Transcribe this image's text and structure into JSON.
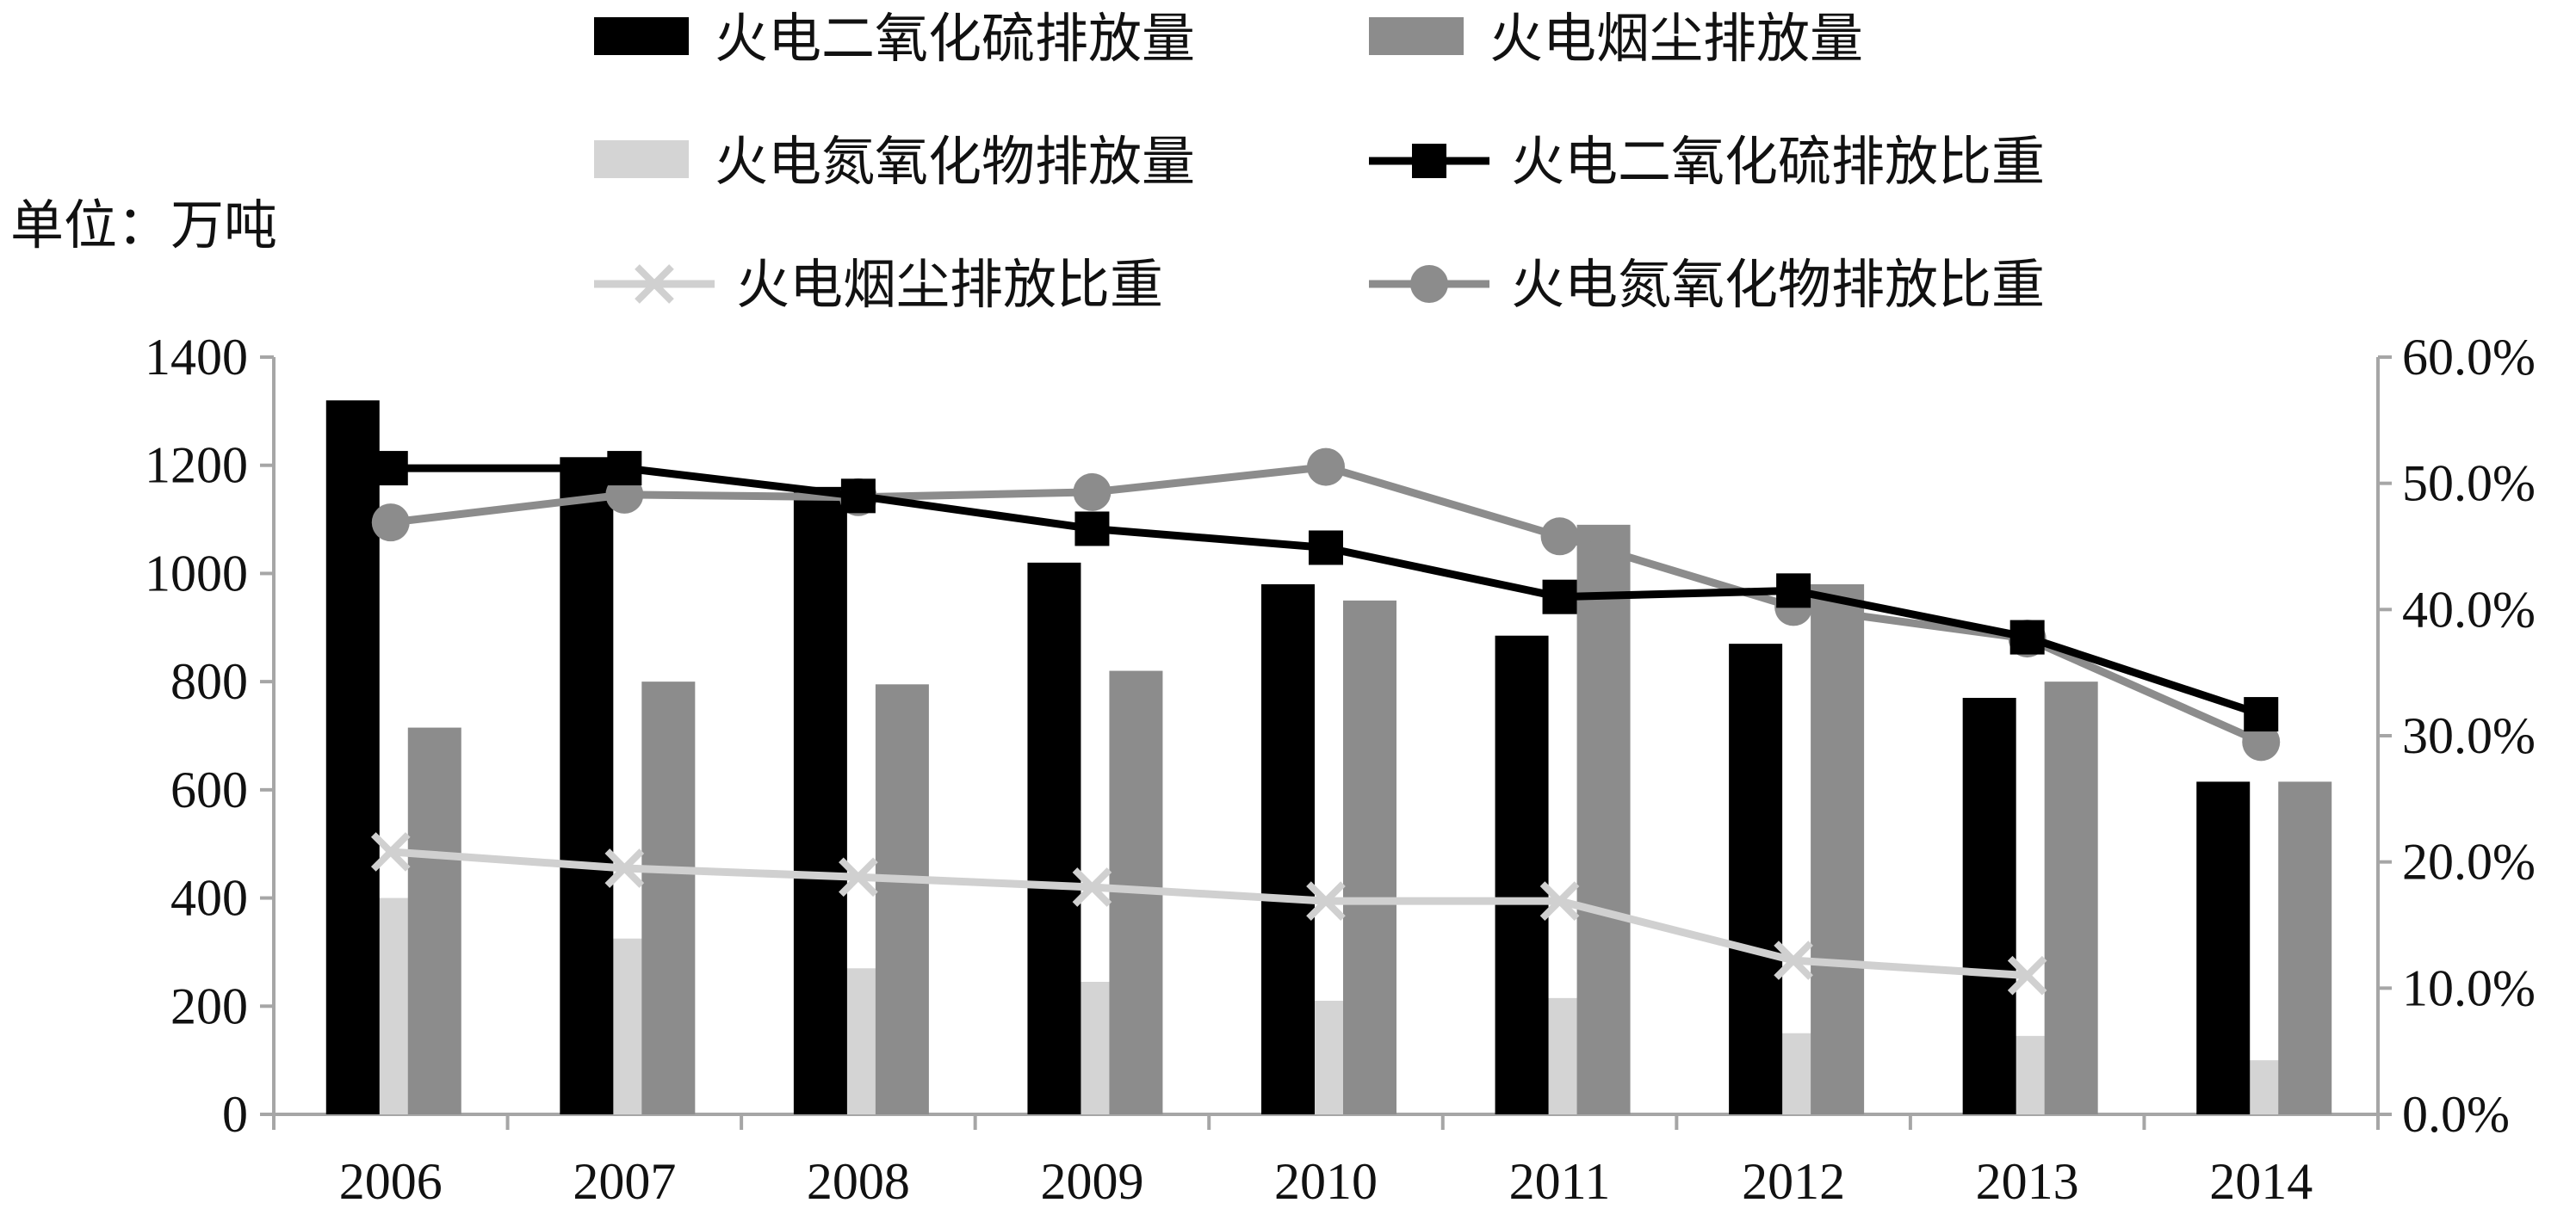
{
  "chart_data": {
    "type": "bar",
    "unit_label": "单位：万吨",
    "categories": [
      "2006",
      "2007",
      "2008",
      "2009",
      "2010",
      "2011",
      "2012",
      "2013",
      "2014"
    ],
    "bar_series": [
      {
        "name": "火电二氧化硫排放量",
        "color": "#000000",
        "values": [
          1320,
          1215,
          1160,
          1020,
          980,
          885,
          870,
          770,
          615
        ]
      },
      {
        "name": "火电烟尘排放量",
        "color": "#8c8c8c",
        "values": [
          715,
          800,
          795,
          820,
          950,
          1090,
          980,
          800,
          615
        ]
      },
      {
        "name": "火电氮氧化物排放量",
        "color": "#d4d4d4",
        "values": [
          400,
          325,
          270,
          245,
          210,
          215,
          150,
          145,
          100
        ]
      }
    ],
    "line_series": [
      {
        "name": "火电二氧化硫排放比重",
        "color": "#000000",
        "marker": "square",
        "values": [
          51.2,
          51.2,
          49.0,
          46.4,
          44.9,
          41.0,
          41.5,
          37.8,
          31.7
        ]
      },
      {
        "name": "火电烟尘排放比重",
        "color": "#d0d0d0",
        "marker": "x",
        "values": [
          20.8,
          19.5,
          18.8,
          18.0,
          16.9,
          16.9,
          12.2,
          11.0,
          null
        ]
      },
      {
        "name": "火电氮氧化物排放比重",
        "color": "#8c8c8c",
        "marker": "circle",
        "values": [
          46.9,
          49.1,
          48.9,
          49.3,
          51.3,
          45.8,
          40.2,
          37.7,
          29.5
        ]
      }
    ],
    "y_left": {
      "min": 0,
      "max": 1400,
      "ticks": [
        "0",
        "200",
        "400",
        "600",
        "800",
        "1000",
        "1200",
        "1400"
      ]
    },
    "y_right": {
      "min": 0,
      "max": 60,
      "ticks": [
        "0.0%",
        "10.0%",
        "20.0%",
        "30.0%",
        "40.0%",
        "50.0%",
        "60.0%"
      ]
    },
    "legend_position": "top",
    "grid": false
  }
}
